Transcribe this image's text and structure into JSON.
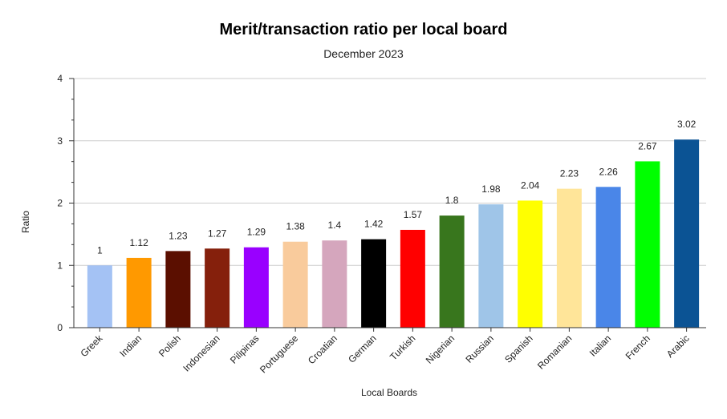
{
  "chart_data": {
    "type": "bar",
    "title": "Merit/transaction ratio per local board",
    "subtitle": "December 2023",
    "xlabel": "Local Boards",
    "ylabel": "Ratio",
    "ylim": [
      0,
      4
    ],
    "yticks": [
      0,
      1,
      2,
      3,
      4
    ],
    "grid": true,
    "legend": "none",
    "categories": [
      "Greek",
      "Indian",
      "Polish",
      "Indonesian",
      "Pilipinas",
      "Portuguese",
      "Croatian",
      "German",
      "Turkish",
      "Nigerian",
      "Russian",
      "Spanish",
      "Romanian",
      "Italian",
      "French",
      "Arabic"
    ],
    "values": [
      1,
      1.12,
      1.23,
      1.27,
      1.29,
      1.38,
      1.4,
      1.42,
      1.57,
      1.8,
      1.98,
      2.04,
      2.23,
      2.26,
      2.67,
      3.02
    ],
    "value_labels": [
      "1",
      "1.12",
      "1.23",
      "1.27",
      "1.29",
      "1.38",
      "1.4",
      "1.42",
      "1.57",
      "1.8",
      "1.98",
      "2.04",
      "2.23",
      "2.26",
      "2.67",
      "3.02"
    ],
    "colors": [
      "#a4c2f4",
      "#ff9900",
      "#5b0f00",
      "#85200c",
      "#9900ff",
      "#f9cb9c",
      "#d5a6bd",
      "#000000",
      "#ff0000",
      "#38761d",
      "#9fc5e8",
      "#ffff00",
      "#ffe599",
      "#4a86e8",
      "#00ff00",
      "#0b5394"
    ]
  }
}
